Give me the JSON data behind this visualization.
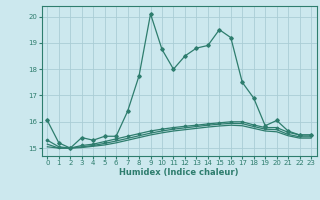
{
  "xlabel": "Humidex (Indice chaleur)",
  "bg_color": "#cce8ee",
  "grid_color": "#aacdd5",
  "line_color": "#2e7d6e",
  "xlim": [
    -0.5,
    23.5
  ],
  "ylim": [
    14.7,
    20.4
  ],
  "yticks": [
    15,
    16,
    17,
    18,
    19,
    20
  ],
  "xticks": [
    0,
    1,
    2,
    3,
    4,
    5,
    6,
    7,
    8,
    9,
    10,
    11,
    12,
    13,
    14,
    15,
    16,
    17,
    18,
    19,
    20,
    21,
    22,
    23
  ],
  "line1_x": [
    0,
    1,
    2,
    3,
    4,
    5,
    6,
    7,
    8,
    9,
    10,
    11,
    12,
    13,
    14,
    15,
    16,
    17,
    18,
    19,
    20,
    21,
    22,
    23
  ],
  "line1_y": [
    16.05,
    15.2,
    15.0,
    15.4,
    15.3,
    15.45,
    15.45,
    16.4,
    17.75,
    20.1,
    18.75,
    18.0,
    18.5,
    18.8,
    18.9,
    19.5,
    19.2,
    17.5,
    16.9,
    15.85,
    16.05,
    15.65,
    15.5,
    15.5
  ],
  "line2_x": [
    0,
    1,
    2,
    3,
    4,
    5,
    6,
    7,
    8,
    9,
    10,
    11,
    12,
    13,
    14,
    15,
    16,
    17,
    18,
    19,
    20,
    21,
    22,
    23
  ],
  "line2_y": [
    15.3,
    15.05,
    15.0,
    15.1,
    15.15,
    15.25,
    15.35,
    15.45,
    15.55,
    15.65,
    15.72,
    15.78,
    15.83,
    15.87,
    15.92,
    15.96,
    16.0,
    16.0,
    15.88,
    15.78,
    15.78,
    15.6,
    15.5,
    15.5
  ],
  "line3_x": [
    0,
    1,
    2,
    3,
    4,
    5,
    6,
    7,
    8,
    9,
    10,
    11,
    12,
    13,
    14,
    15,
    16,
    17,
    18,
    19,
    20,
    21,
    22,
    23
  ],
  "line3_y": [
    15.15,
    15.0,
    15.0,
    15.05,
    15.1,
    15.18,
    15.27,
    15.37,
    15.47,
    15.57,
    15.65,
    15.72,
    15.77,
    15.82,
    15.87,
    15.91,
    15.94,
    15.93,
    15.82,
    15.72,
    15.7,
    15.52,
    15.43,
    15.43
  ],
  "line4_x": [
    0,
    1,
    2,
    3,
    4,
    5,
    6,
    7,
    8,
    9,
    10,
    11,
    12,
    13,
    14,
    15,
    16,
    17,
    18,
    19,
    20,
    21,
    22,
    23
  ],
  "line4_y": [
    15.05,
    15.0,
    15.0,
    15.02,
    15.07,
    15.12,
    15.2,
    15.3,
    15.4,
    15.5,
    15.58,
    15.65,
    15.7,
    15.75,
    15.8,
    15.84,
    15.87,
    15.85,
    15.75,
    15.65,
    15.62,
    15.47,
    15.38,
    15.38
  ]
}
